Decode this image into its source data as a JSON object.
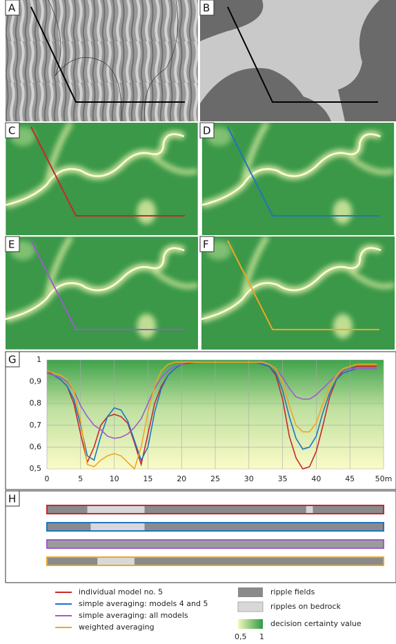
{
  "panels": [
    "A",
    "B",
    "C",
    "D",
    "E",
    "F",
    "G",
    "H"
  ],
  "chart_data": {
    "type": "line",
    "x": [
      0,
      1,
      2,
      3,
      4,
      5,
      6,
      7,
      8,
      9,
      10,
      11,
      12,
      13,
      14,
      15,
      16,
      17,
      18,
      19,
      20,
      21,
      22,
      23,
      24,
      25,
      26,
      27,
      28,
      29,
      30,
      31,
      32,
      33,
      34,
      35,
      36,
      37,
      38,
      39,
      40,
      41,
      42,
      43,
      44,
      45,
      46,
      47,
      48,
      49
    ],
    "xlim": [
      0,
      50
    ],
    "xticks": [
      0,
      5,
      10,
      15,
      20,
      25,
      30,
      35,
      40,
      45,
      {
        "value": 50,
        "label": "50m"
      }
    ],
    "ylim": [
      0.5,
      1
    ],
    "yticks": [
      {
        "value": 0.5,
        "label": "0,5"
      },
      {
        "value": 0.6,
        "label": "0,6"
      },
      {
        "value": 0.7,
        "label": "0,7"
      },
      {
        "value": 0.8,
        "label": "0,8"
      },
      {
        "value": 0.9,
        "label": "0,9"
      },
      1
    ],
    "grid": true,
    "series": [
      {
        "name": "individual model no. 5",
        "color": "#c8262c",
        "values": [
          0.95,
          0.93,
          0.91,
          0.88,
          0.8,
          0.66,
          0.53,
          0.6,
          0.7,
          0.74,
          0.75,
          0.74,
          0.71,
          0.62,
          0.52,
          0.66,
          0.8,
          0.88,
          0.93,
          0.96,
          0.98,
          0.985,
          0.99,
          0.99,
          0.99,
          0.99,
          0.99,
          0.99,
          0.99,
          0.99,
          0.99,
          0.99,
          0.98,
          0.97,
          0.93,
          0.82,
          0.65,
          0.55,
          0.5,
          0.51,
          0.58,
          0.7,
          0.83,
          0.91,
          0.95,
          0.96,
          0.97,
          0.97,
          0.97,
          0.97
        ]
      },
      {
        "name": "simple averaging: models 4 and 5",
        "color": "#1f74c2",
        "values": [
          0.94,
          0.93,
          0.91,
          0.88,
          0.82,
          0.7,
          0.56,
          0.54,
          0.65,
          0.74,
          0.78,
          0.77,
          0.72,
          0.63,
          0.54,
          0.6,
          0.76,
          0.87,
          0.93,
          0.96,
          0.98,
          0.99,
          0.99,
          0.99,
          0.99,
          0.99,
          0.99,
          0.99,
          0.99,
          0.99,
          0.99,
          0.99,
          0.98,
          0.97,
          0.94,
          0.86,
          0.74,
          0.64,
          0.59,
          0.6,
          0.65,
          0.76,
          0.85,
          0.91,
          0.94,
          0.95,
          0.96,
          0.96,
          0.96,
          0.96
        ]
      },
      {
        "name": "simple averaging: all models",
        "color": "#9b5ccc",
        "values": [
          0.94,
          0.93,
          0.92,
          0.9,
          0.86,
          0.79,
          0.74,
          0.7,
          0.68,
          0.65,
          0.64,
          0.645,
          0.66,
          0.69,
          0.73,
          0.8,
          0.87,
          0.92,
          0.95,
          0.97,
          0.98,
          0.99,
          0.99,
          0.99,
          0.99,
          0.99,
          0.99,
          0.99,
          0.99,
          0.99,
          0.99,
          0.99,
          0.985,
          0.98,
          0.96,
          0.92,
          0.87,
          0.83,
          0.82,
          0.82,
          0.84,
          0.87,
          0.9,
          0.93,
          0.95,
          0.96,
          0.96,
          0.96,
          0.96,
          0.96
        ]
      },
      {
        "name": "weighted averaging",
        "color": "#f2a51f",
        "values": [
          0.95,
          0.94,
          0.93,
          0.91,
          0.86,
          0.72,
          0.52,
          0.51,
          0.54,
          0.56,
          0.57,
          0.56,
          0.53,
          0.5,
          0.6,
          0.76,
          0.88,
          0.95,
          0.98,
          0.99,
          0.99,
          0.99,
          0.99,
          0.99,
          0.99,
          0.99,
          0.99,
          0.99,
          0.99,
          0.99,
          0.99,
          0.99,
          0.99,
          0.98,
          0.96,
          0.9,
          0.79,
          0.7,
          0.67,
          0.67,
          0.71,
          0.8,
          0.88,
          0.93,
          0.96,
          0.97,
          0.98,
          0.98,
          0.98,
          0.98
        ]
      }
    ]
  },
  "strips": [
    {
      "bedrock": [
        [
          6,
          14.5
        ],
        [
          38.5,
          39.5
        ]
      ]
    },
    {
      "bedrock": [
        [
          6.5,
          14.5
        ]
      ]
    },
    {
      "bedrock": []
    },
    {
      "bedrock": [
        [
          7.5,
          13
        ]
      ]
    }
  ],
  "legend": {
    "ripple_fields": "ripple fields",
    "bedrock": "ripples on bedrock",
    "certainty": "decision certainty value",
    "low": "0,5",
    "high": "1"
  }
}
